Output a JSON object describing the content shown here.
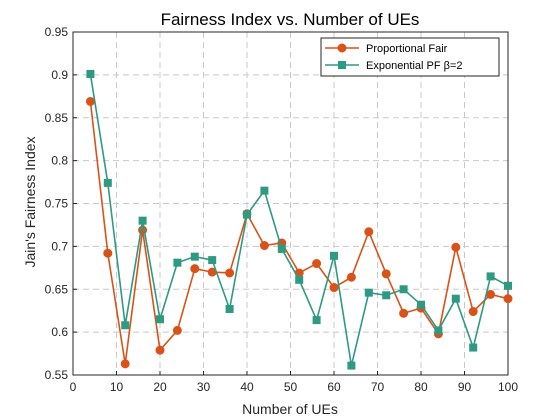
{
  "chart_data": {
    "type": "line",
    "title": "Fairness Index vs. Number of UEs",
    "xlabel": "Number of UEs",
    "ylabel": "Jain's Fairness Index",
    "xlim": [
      0,
      100
    ],
    "ylim": [
      0.55,
      0.95
    ],
    "xticks": [
      "0",
      "10",
      "20",
      "30",
      "40",
      "50",
      "60",
      "70",
      "80",
      "90",
      "100"
    ],
    "yticks": [
      "0.55",
      "0.6",
      "0.65",
      "0.7",
      "0.75",
      "0.8",
      "0.85",
      "0.9",
      "0.95"
    ],
    "grid": true,
    "legend_position": "top-right",
    "x": [
      4,
      8,
      12,
      16,
      20,
      24,
      28,
      32,
      36,
      40,
      44,
      48,
      52,
      56,
      60,
      64,
      68,
      72,
      76,
      80,
      84,
      88,
      92,
      96,
      100
    ],
    "series": [
      {
        "name": "Proportional Fair",
        "color": "#d95319",
        "marker": "circle",
        "values": [
          0.869,
          0.692,
          0.563,
          0.719,
          0.579,
          0.602,
          0.674,
          0.67,
          0.669,
          0.738,
          0.701,
          0.704,
          0.669,
          0.68,
          0.652,
          0.664,
          0.717,
          0.668,
          0.622,
          0.628,
          0.598,
          0.699,
          0.624,
          0.644,
          0.639
        ]
      },
      {
        "name": "Exponential PF β=2",
        "color": "#2e9a83",
        "marker": "square",
        "values": [
          0.901,
          0.774,
          0.608,
          0.73,
          0.615,
          0.681,
          0.688,
          0.684,
          0.627,
          0.737,
          0.765,
          0.697,
          0.661,
          0.614,
          0.689,
          0.561,
          0.646,
          0.643,
          0.65,
          0.632,
          0.602,
          0.639,
          0.582,
          0.665,
          0.654
        ]
      }
    ]
  }
}
